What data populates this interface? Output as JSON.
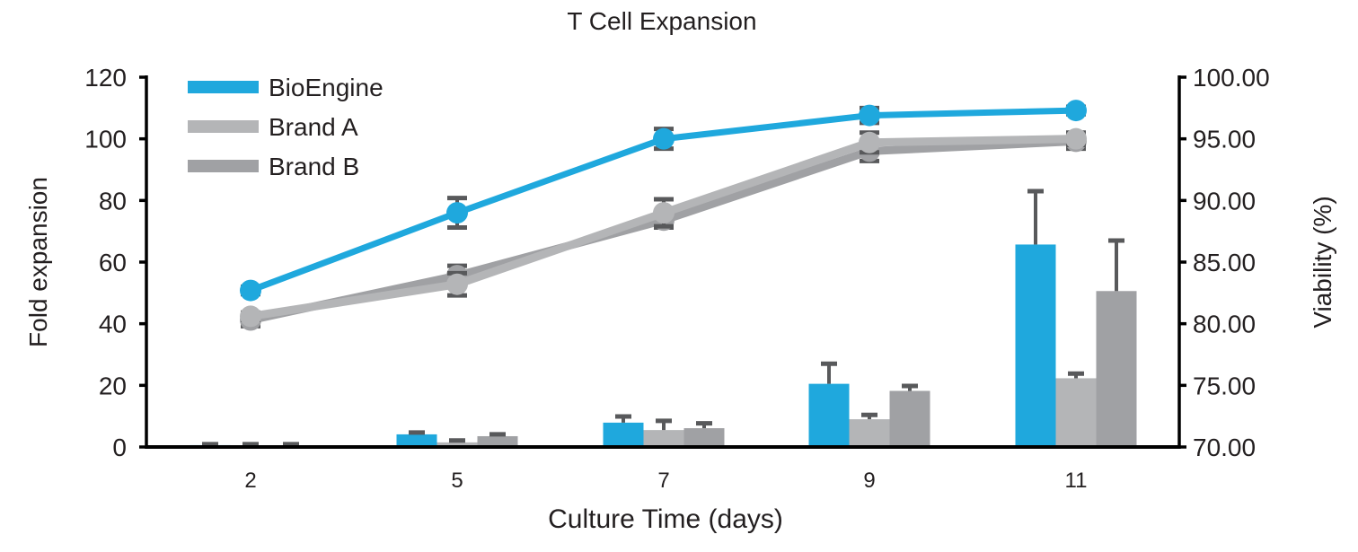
{
  "chart_data": {
    "type": "bar+line",
    "title": "T Cell Expansion",
    "xlabel": "Culture Time (days)",
    "ylabel_left": "Fold expansion",
    "ylabel_right": "Viability (%)",
    "categories": [
      "2",
      "5",
      "7",
      "9",
      "11"
    ],
    "ylim_left": [
      0,
      120
    ],
    "yticks_left": [
      "0",
      "20",
      "40",
      "60",
      "80",
      "100",
      "120"
    ],
    "ylim_right": [
      70,
      100
    ],
    "yticks_right": [
      "70.00",
      "75.00",
      "80.00",
      "85.00",
      "90.00",
      "95.00",
      "100.00"
    ],
    "grid": false,
    "legend": {
      "position": "top-left",
      "entries": [
        "BioEngine",
        "Brand A",
        "Brand B"
      ]
    },
    "colors": {
      "BioEngine": "#1fa8dd",
      "Brand A": "#b4b5b7",
      "Brand B": "#a0a1a4",
      "error": "#58595b",
      "axis": "#000000"
    },
    "bars": {
      "axis": "left",
      "series": [
        {
          "name": "BioEngine",
          "values": [
            0.6,
            4.1,
            7.9,
            20.5,
            65.7
          ],
          "errors": [
            0.3,
            0.6,
            2.0,
            6.5,
            17.3
          ]
        },
        {
          "name": "Brand A",
          "values": [
            0.4,
            1.5,
            5.5,
            9.0,
            22.3
          ],
          "errors": [
            0.5,
            0.6,
            3.0,
            1.4,
            1.5
          ]
        },
        {
          "name": "Brand B",
          "values": [
            0.5,
            3.5,
            6.1,
            18.2,
            50.6
          ],
          "errors": [
            0.4,
            0.6,
            1.6,
            1.6,
            16.4
          ]
        }
      ]
    },
    "lines": {
      "axis": "right",
      "series": [
        {
          "name": "BioEngine",
          "values": [
            82.7,
            89.0,
            95.0,
            96.9,
            97.3
          ],
          "errors": [
            0.3,
            1.2,
            0.8,
            0.6,
            0.3
          ]
        },
        {
          "name": "Brand A",
          "values": [
            80.6,
            83.2,
            89.0,
            94.7,
            95.0
          ],
          "errors": [
            0.3,
            0.9,
            1.1,
            0.8,
            0.5
          ]
        },
        {
          "name": "Brand B",
          "values": [
            80.3,
            83.9,
            88.4,
            94.0,
            94.8
          ],
          "errors": [
            0.5,
            0.8,
            0.6,
            0.8,
            0.6
          ]
        }
      ]
    }
  }
}
